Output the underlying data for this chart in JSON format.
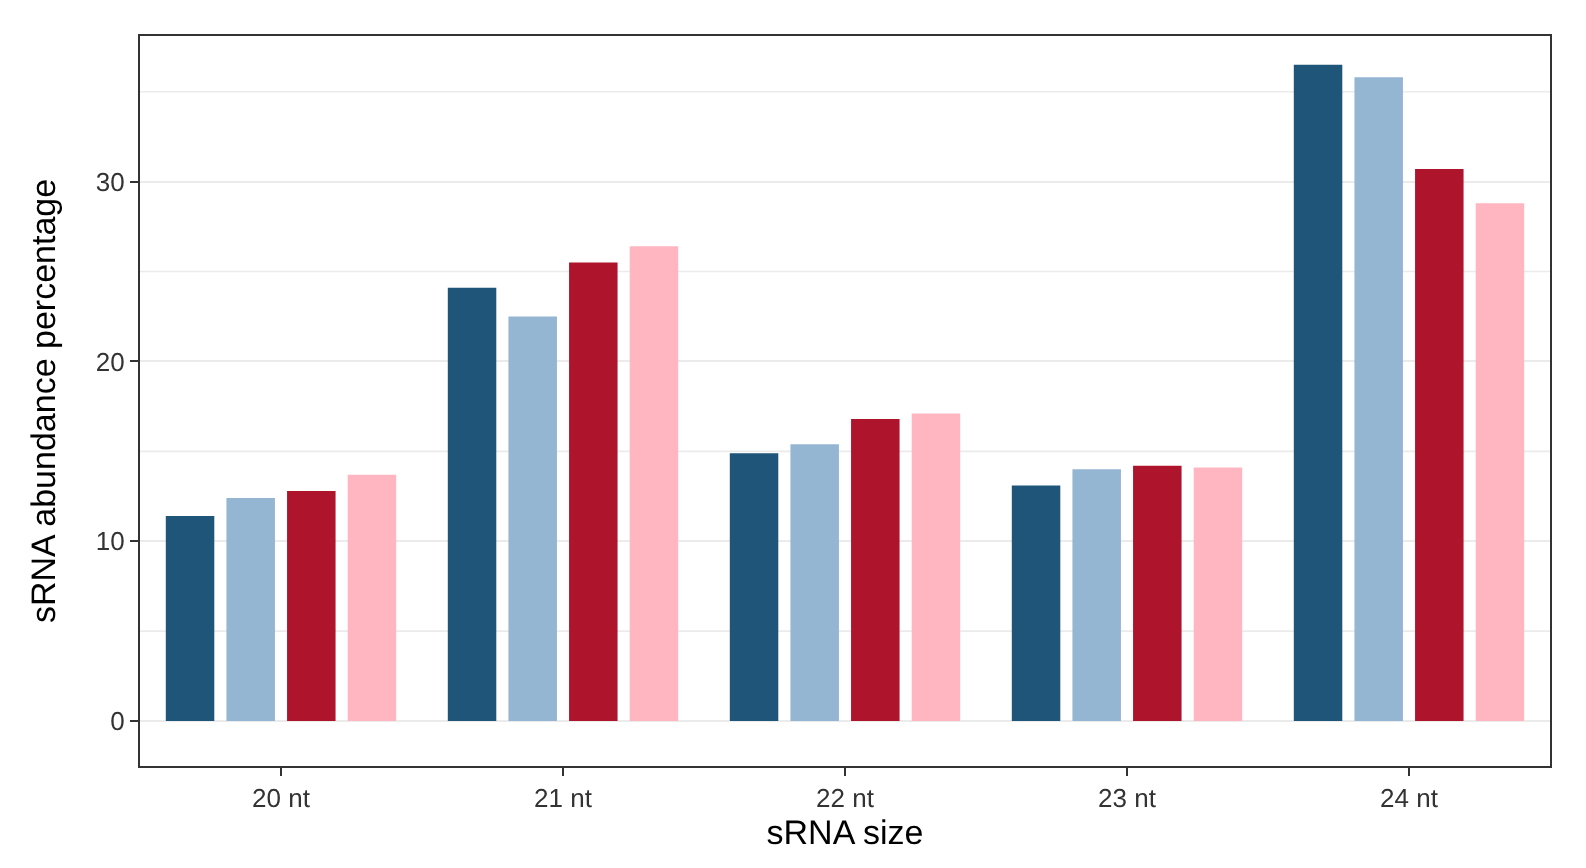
{
  "chart_data": {
    "type": "bar",
    "xlabel": "sRNA size",
    "ylabel": "sRNA abundance percentage",
    "categories": [
      "20 nt",
      "21 nt",
      "22 nt",
      "23 nt",
      "24 nt"
    ],
    "series": [
      {
        "color": "#1f5579",
        "values": [
          11.4,
          24.1,
          14.9,
          13.1,
          36.5
        ]
      },
      {
        "color": "#94b6d2",
        "values": [
          12.4,
          22.5,
          15.4,
          14.0,
          35.8
        ]
      },
      {
        "color": "#ae142c",
        "values": [
          12.8,
          25.5,
          16.8,
          14.2,
          30.7
        ]
      },
      {
        "color": "#ffb6c1",
        "values": [
          13.7,
          26.4,
          17.1,
          14.1,
          28.8
        ]
      }
    ],
    "ylim": [
      -2.5,
      38.1
    ],
    "yticks": [
      0,
      10,
      20,
      30
    ],
    "grid": "y",
    "legend": false
  }
}
